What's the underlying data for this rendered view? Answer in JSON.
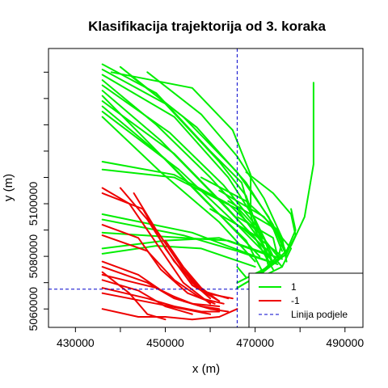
{
  "chart_data": {
    "type": "line",
    "title": "Klasifikacija trajektorija od 3. koraka",
    "xlabel": "x (m)",
    "ylabel": "y (m)",
    "xlim": [
      424000,
      494000
    ],
    "ylim": [
      5053000,
      5159000
    ],
    "x_ticks": [
      430000,
      450000,
      470000,
      490000
    ],
    "x_tick_labels": [
      "430000",
      "450000",
      "470000",
      "490000"
    ],
    "y_ticks": [
      5060000,
      5080000,
      5100000
    ],
    "y_tick_labels": [
      "5060000",
      "5080000",
      "5100000"
    ],
    "legend_position": "bottom-right",
    "division_line": {
      "x": 466000,
      "y": 5067500,
      "color": "#0000cc",
      "style": "dashed"
    },
    "series": [
      {
        "name": "1",
        "color": "#00ee00",
        "trajectories": [
          [
            [
              436000,
              5153000
            ],
            [
              448000,
              5142000
            ],
            [
              460000,
              5120000
            ],
            [
              467000,
              5108000
            ],
            [
              470000,
              5090000
            ],
            [
              474000,
              5077000
            ]
          ],
          [
            [
              436000,
              5151000
            ],
            [
              450000,
              5138000
            ],
            [
              462000,
              5116000
            ],
            [
              468000,
              5103000
            ],
            [
              471000,
              5088000
            ],
            [
              473000,
              5078000
            ]
          ],
          [
            [
              436000,
              5149000
            ],
            [
              452000,
              5133000
            ],
            [
              464000,
              5110000
            ],
            [
              470000,
              5094000
            ],
            [
              474000,
              5080000
            ]
          ],
          [
            [
              436000,
              5147000
            ],
            [
              448000,
              5130000
            ],
            [
              460000,
              5110000
            ],
            [
              469000,
              5093000
            ],
            [
              475000,
              5080000
            ]
          ],
          [
            [
              436000,
              5145000
            ],
            [
              451000,
              5127000
            ],
            [
              463000,
              5107000
            ],
            [
              471000,
              5090000
            ],
            [
              473000,
              5076000
            ]
          ],
          [
            [
              436000,
              5143000
            ],
            [
              449000,
              5124000
            ],
            [
              461000,
              5103000
            ],
            [
              470000,
              5087000
            ],
            [
              474000,
              5075000
            ]
          ],
          [
            [
              436000,
              5141000
            ],
            [
              447000,
              5122000
            ],
            [
              459000,
              5101000
            ],
            [
              468000,
              5086000
            ],
            [
              472000,
              5073000
            ]
          ],
          [
            [
              436000,
              5139000
            ],
            [
              452000,
              5119000
            ],
            [
              464000,
              5098000
            ],
            [
              472000,
              5083000
            ]
          ],
          [
            [
              436000,
              5137000
            ],
            [
              450000,
              5117000
            ],
            [
              462000,
              5096000
            ],
            [
              471000,
              5080000
            ]
          ],
          [
            [
              436000,
              5135000
            ],
            [
              453000,
              5113000
            ],
            [
              466000,
              5092000
            ],
            [
              474000,
              5078000
            ]
          ],
          [
            [
              436000,
              5133000
            ],
            [
              449000,
              5112000
            ],
            [
              462000,
              5093000
            ],
            [
              470000,
              5078000
            ]
          ],
          [
            [
              440000,
              5152000
            ],
            [
              454000,
              5133000
            ],
            [
              466000,
              5112000
            ],
            [
              473000,
              5095000
            ],
            [
              476000,
              5082000
            ]
          ],
          [
            [
              442000,
              5149000
            ],
            [
              457000,
              5129000
            ],
            [
              468000,
              5108000
            ],
            [
              474000,
              5092000
            ],
            [
              477000,
              5080000
            ]
          ],
          [
            [
              446000,
              5150000
            ],
            [
              458000,
              5134000
            ],
            [
              466000,
              5118000
            ],
            [
              472000,
              5102000
            ],
            [
              476000,
              5087000
            ],
            [
              477000,
              5078000
            ]
          ],
          [
            [
              438000,
              5150000
            ],
            [
              456000,
              5144000
            ],
            [
              465000,
              5128000
            ],
            [
              469000,
              5111000
            ],
            [
              469000,
              5098000
            ]
          ],
          [
            [
              436000,
              5116000
            ],
            [
              452000,
              5111000
            ],
            [
              464000,
              5100000
            ],
            [
              472000,
              5087000
            ],
            [
              474000,
              5077000
            ]
          ],
          [
            [
              436000,
              5113000
            ],
            [
              452000,
              5110000
            ],
            [
              466000,
              5098000
            ],
            [
              472000,
              5084000
            ]
          ],
          [
            [
              436000,
              5096000
            ],
            [
              456000,
              5089000
            ],
            [
              470000,
              5080000
            ],
            [
              475000,
              5077000
            ]
          ],
          [
            [
              436000,
              5094000
            ],
            [
              454000,
              5088000
            ],
            [
              466000,
              5082000
            ],
            [
              473000,
              5078000
            ]
          ],
          [
            [
              436000,
              5089000
            ],
            [
              454000,
              5087000
            ],
            [
              464000,
              5086000
            ],
            [
              476000,
              5079000
            ]
          ],
          [
            [
              436000,
              5083000
            ],
            [
              450000,
              5086000
            ],
            [
              462000,
              5087000
            ],
            [
              472000,
              5081000
            ]
          ],
          [
            [
              436000,
              5081000
            ],
            [
              448000,
              5084000
            ],
            [
              458000,
              5083000
            ],
            [
              470000,
              5076000
            ]
          ],
          [
            [
              468000,
              5112000
            ],
            [
              474000,
              5104000
            ],
            [
              478000,
              5096000
            ],
            [
              479000,
              5088000
            ],
            [
              477000,
              5081000
            ],
            [
              471000,
              5073000
            ],
            [
              466000,
              5068000
            ]
          ],
          [
            [
              478000,
              5098000
            ],
            [
              479000,
              5090000
            ],
            [
              477000,
              5082000
            ],
            [
              473000,
              5076000
            ],
            [
              466000,
              5070000
            ]
          ],
          [
            [
              483000,
              5146000
            ],
            [
              483000,
              5115000
            ],
            [
              481000,
              5095000
            ],
            [
              478000,
              5084000
            ],
            [
              474000,
              5077000
            ],
            [
              470000,
              5072000
            ],
            [
              466000,
              5068000
            ]
          ],
          [
            [
              466000,
              5095000
            ],
            [
              474000,
              5087000
            ],
            [
              475000,
              5080000
            ],
            [
              472000,
              5075000
            ]
          ],
          [
            [
              462000,
              5105000
            ],
            [
              472000,
              5095000
            ],
            [
              476000,
              5086000
            ],
            [
              475000,
              5078000
            ],
            [
              470000,
              5073000
            ]
          ],
          [
            [
              464000,
              5101000
            ],
            [
              474000,
              5091000
            ],
            [
              478000,
              5083000
            ],
            [
              476000,
              5076000
            ]
          ],
          [
            [
              458000,
              5110000
            ],
            [
              468000,
              5101000
            ],
            [
              475000,
              5090000
            ],
            [
              477000,
              5081000
            ]
          ],
          [
            [
              466000,
              5076000
            ],
            [
              468000,
              5072000
            ]
          ],
          [
            [
              467000,
              5091000
            ],
            [
              473000,
              5082000
            ],
            [
              476000,
              5076000
            ],
            [
              470000,
              5071000
            ]
          ],
          [
            [
              460000,
              5098000
            ],
            [
              470000,
              5088000
            ],
            [
              476000,
              5080000
            ],
            [
              471000,
              5074000
            ]
          ]
        ]
      },
      {
        "name": "-1",
        "color": "#ee0000",
        "trajectories": [
          [
            [
              436000,
              5106000
            ],
            [
              442000,
              5100000
            ],
            [
              448000,
              5085000
            ],
            [
              454000,
              5070000
            ],
            [
              460000,
              5062000
            ]
          ],
          [
            [
              436000,
              5104000
            ],
            [
              445000,
              5098000
            ],
            [
              450000,
              5083000
            ],
            [
              456000,
              5069000
            ],
            [
              462000,
              5063000
            ]
          ],
          [
            [
              440000,
              5106000
            ],
            [
              446000,
              5094000
            ],
            [
              452000,
              5078000
            ],
            [
              458000,
              5067000
            ],
            [
              464000,
              5064000
            ]
          ],
          [
            [
              443000,
              5104000
            ],
            [
              448000,
              5090000
            ],
            [
              454000,
              5075000
            ],
            [
              459000,
              5066000
            ],
            [
              465000,
              5064000
            ]
          ],
          [
            [
              436000,
              5092000
            ],
            [
              444000,
              5087000
            ],
            [
              449000,
              5075000
            ],
            [
              455000,
              5066000
            ],
            [
              461000,
              5062000
            ]
          ],
          [
            [
              436000,
              5088000
            ],
            [
              446000,
              5082000
            ],
            [
              452000,
              5071000
            ],
            [
              458000,
              5064000
            ],
            [
              463000,
              5062000
            ]
          ],
          [
            [
              436000,
              5078000
            ],
            [
              444000,
              5073000
            ],
            [
              450000,
              5066000
            ],
            [
              456000,
              5062000
            ],
            [
              462000,
              5061000
            ]
          ],
          [
            [
              436000,
              5076000
            ],
            [
              446000,
              5070000
            ],
            [
              452000,
              5064000
            ],
            [
              458000,
              5061000
            ],
            [
              462000,
              5060000
            ]
          ],
          [
            [
              436000,
              5073000
            ],
            [
              448000,
              5068000
            ],
            [
              454000,
              5063000
            ],
            [
              460000,
              5060000
            ],
            [
              464000,
              5059000
            ]
          ],
          [
            [
              436000,
              5068000
            ],
            [
              446000,
              5064000
            ],
            [
              452000,
              5061000
            ],
            [
              458000,
              5059000
            ],
            [
              462000,
              5059000
            ]
          ],
          [
            [
              436000,
              5066000
            ],
            [
              448000,
              5062000
            ],
            [
              454000,
              5060000
            ],
            [
              460000,
              5058000
            ]
          ],
          [
            [
              436000,
              5060000
            ],
            [
              444000,
              5057000
            ],
            [
              450000,
              5057000
            ],
            [
              456000,
              5056000
            ],
            [
              462000,
              5057000
            ],
            [
              466000,
              5060000
            ]
          ],
          [
            [
              436000,
              5074000
            ],
            [
              442000,
              5066000
            ],
            [
              446000,
              5058000
            ],
            [
              450000,
              5056000
            ]
          ],
          [
            [
              436000,
              5071000
            ],
            [
              444000,
              5067000
            ],
            [
              450000,
              5061000
            ],
            [
              456000,
              5058000
            ]
          ],
          [
            [
              448000,
              5090000
            ],
            [
              452000,
              5080000
            ],
            [
              456000,
              5070000
            ],
            [
              460000,
              5064000
            ]
          ],
          [
            [
              450000,
              5086000
            ],
            [
              454000,
              5076000
            ],
            [
              458000,
              5068000
            ],
            [
              462000,
              5063000
            ]
          ]
        ]
      },
      {
        "name": "Linija podjele",
        "color": "#0000cc"
      }
    ]
  }
}
